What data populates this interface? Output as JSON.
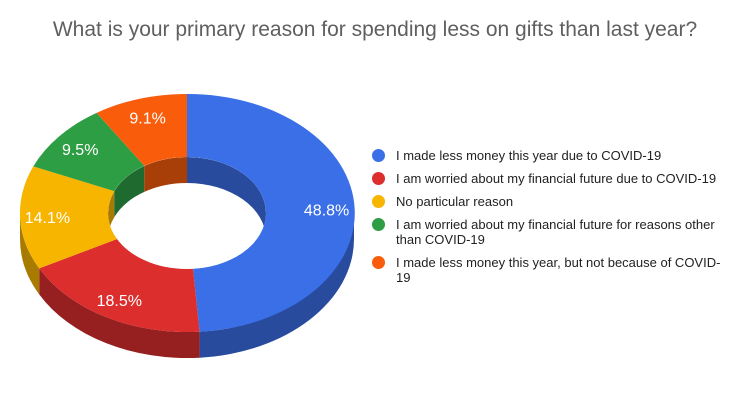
{
  "chart_data": {
    "type": "pie",
    "variant": "donut-3d",
    "title": "What is your primary reason for spending less on gifts than last year?",
    "unit": "%",
    "slices": [
      {
        "label": "I made less money this year due to COVID-19",
        "value": 48.8,
        "display": "48.8%",
        "color": "#3b6fe8"
      },
      {
        "label": "I am worried about my financial future due to COVID-19",
        "value": 18.5,
        "display": "18.5%",
        "color": "#dd2e2e"
      },
      {
        "label": "No particular reason",
        "value": 14.1,
        "display": "14.1%",
        "color": "#f7b500"
      },
      {
        "label": "I am worried about my financial future  for reasons other than COVID-19",
        "value": 9.5,
        "display": "9.5%",
        "color": "#2e9e45"
      },
      {
        "label": "I made less money this year, but not because of COVID-19",
        "value": 9.1,
        "display": "9.1%",
        "color": "#f95d0c"
      }
    ],
    "legend_position": "right",
    "start_angle": "top, clockwise"
  }
}
